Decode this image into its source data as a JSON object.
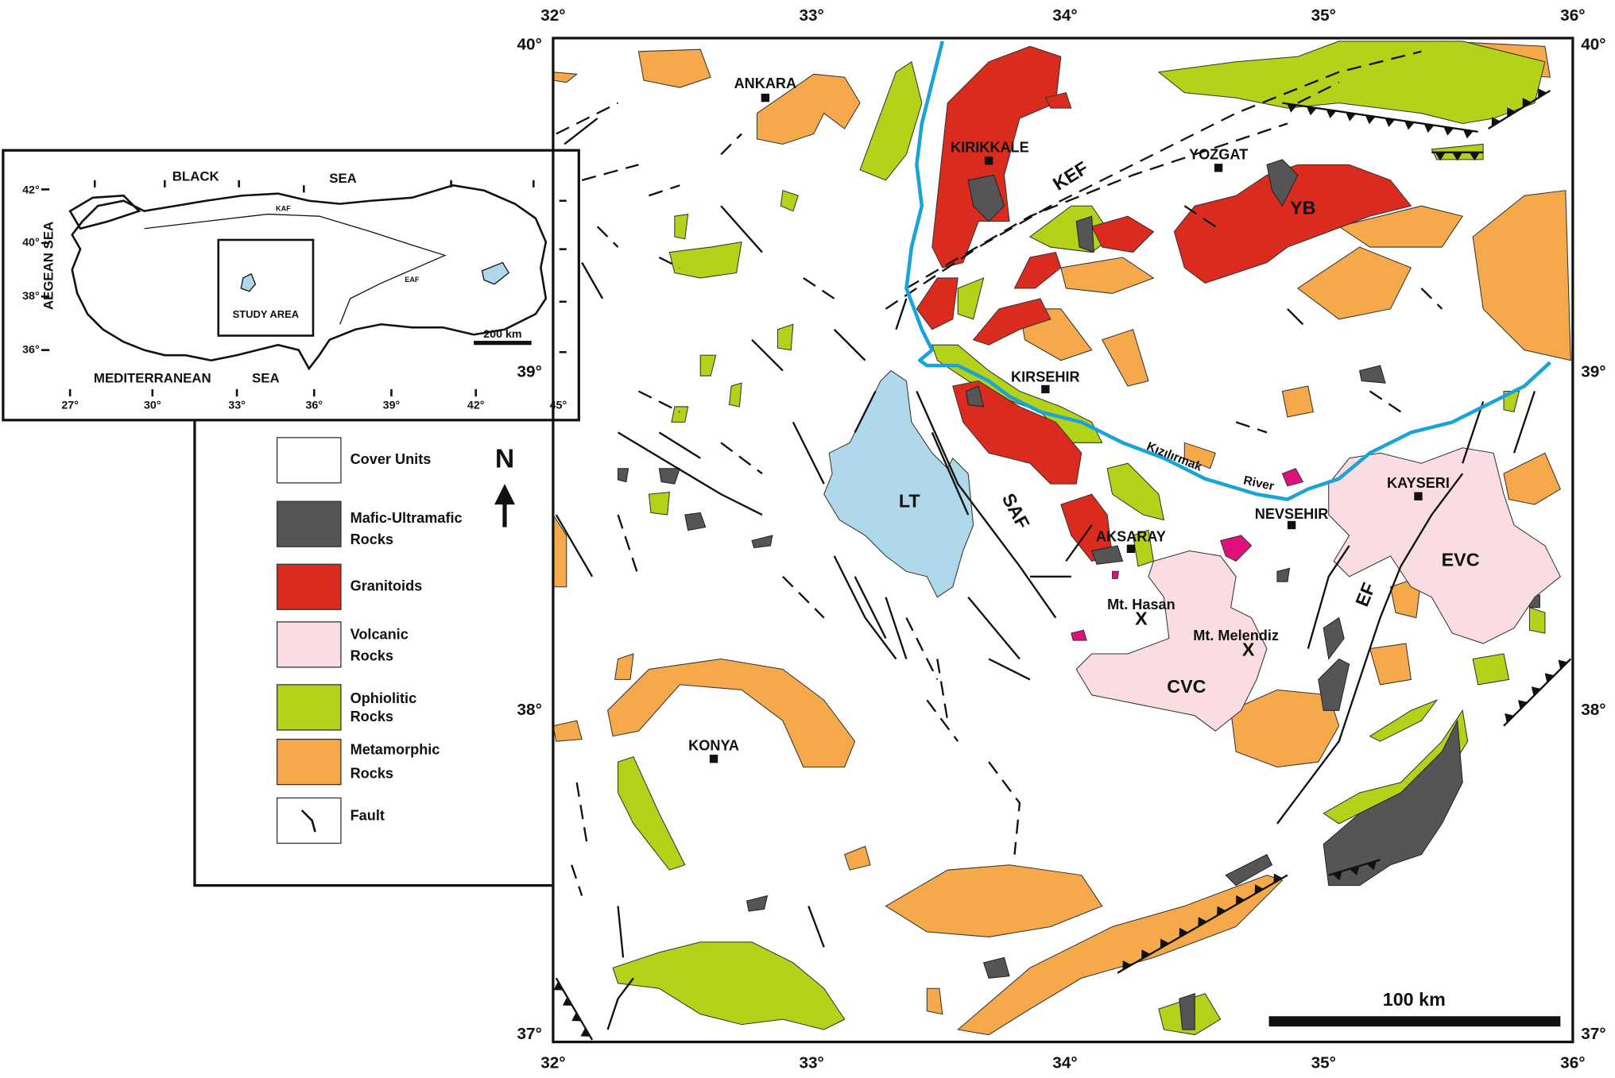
{
  "main_map": {
    "longitude_labels": [
      "32°",
      "33°",
      "34°",
      "35°",
      "36°"
    ],
    "latitude_labels": [
      "40°",
      "39°",
      "38°",
      "37°"
    ],
    "cities": [
      "ANKARA",
      "KIRIKKALE",
      "YOZGAT",
      "KIRSEHIR",
      "AKSARAY",
      "NEVSEHIR",
      "KAYSERI",
      "KONYA"
    ],
    "mountains": [
      "Mt. Hasan",
      "Mt. Melendiz"
    ],
    "peak_symbol": "X",
    "unit_labels": [
      "KEF",
      "YB",
      "LT",
      "SAF",
      "CVC",
      "EVC",
      "EF"
    ],
    "river_label": [
      "Kızılırmak",
      "River"
    ],
    "scale_bar": "100 km"
  },
  "inset_map": {
    "sea_labels": [
      "BLACK",
      "SEA",
      "AEGEAN SEA",
      "MEDITERRANEAN",
      "SEA"
    ],
    "fault_labels": [
      "KAF",
      "EAF"
    ],
    "study_area": "STUDY AREA",
    "scale_bar": "200 km",
    "latitude_labels": [
      "42°",
      "40°",
      "38°",
      "36°"
    ],
    "longitude_labels": [
      "27°",
      "30°",
      "33°",
      "36°",
      "39°",
      "42°",
      "45°"
    ]
  },
  "north_arrow": "N",
  "legend": [
    [
      "Cover Units"
    ],
    [
      "Mafic-Ultramafic",
      "Rocks"
    ],
    [
      "Granitoids"
    ],
    [
      "Volcanic",
      "Rocks"
    ],
    [
      "Ophiolitic",
      "Rocks"
    ],
    [
      "Metamorphic",
      "Rocks"
    ],
    [
      "Fault"
    ]
  ]
}
